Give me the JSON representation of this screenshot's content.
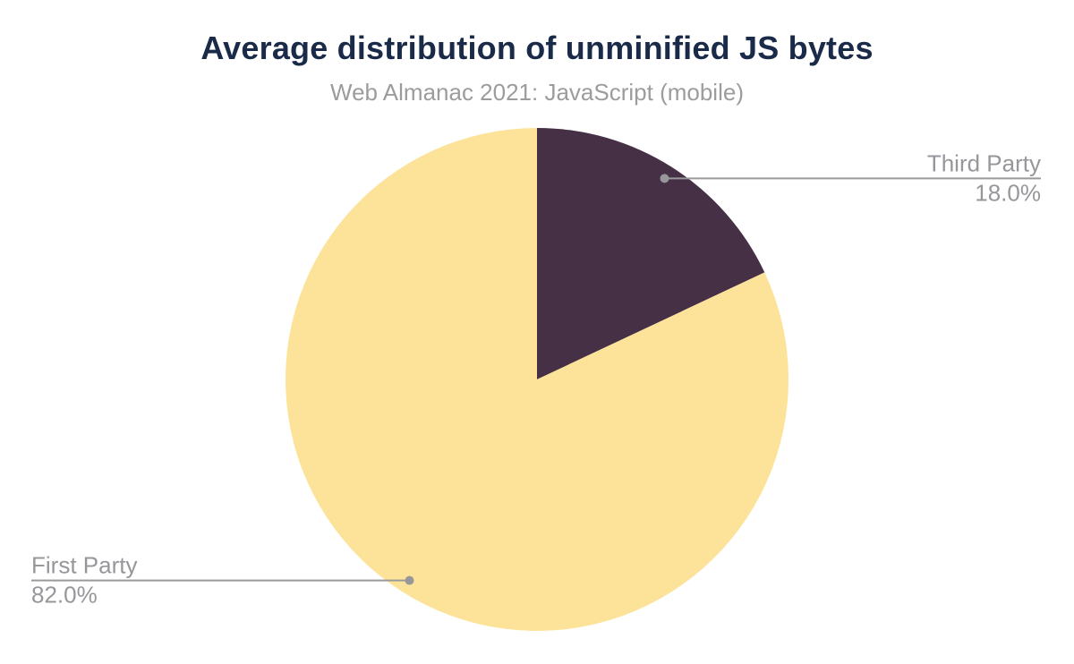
{
  "page": {
    "background": "#FFFFFF"
  },
  "chart_data": {
    "type": "pie",
    "title": "Average distribution of unminified JS bytes",
    "subtitle": "Web Almanac 2021: JavaScript (mobile)",
    "slices": [
      {
        "name": "Third Party",
        "value": 18.0,
        "pct_label": "18.0%",
        "color": "#463046",
        "label_side": "right"
      },
      {
        "name": "First Party",
        "value": 82.0,
        "pct_label": "82.0%",
        "color": "#FDE399",
        "label_side": "left"
      }
    ],
    "start_angle_deg": 0,
    "direction": "clockwise",
    "legend_position": "none",
    "label_style": "callout-with-leader-line",
    "grid": "off"
  },
  "colors": {
    "title": "#1A2B49",
    "subtitle": "#9C9C9C",
    "data_label": "#97979B",
    "connector_line": "#9A9A9A",
    "connector_dot": "#97979B"
  }
}
